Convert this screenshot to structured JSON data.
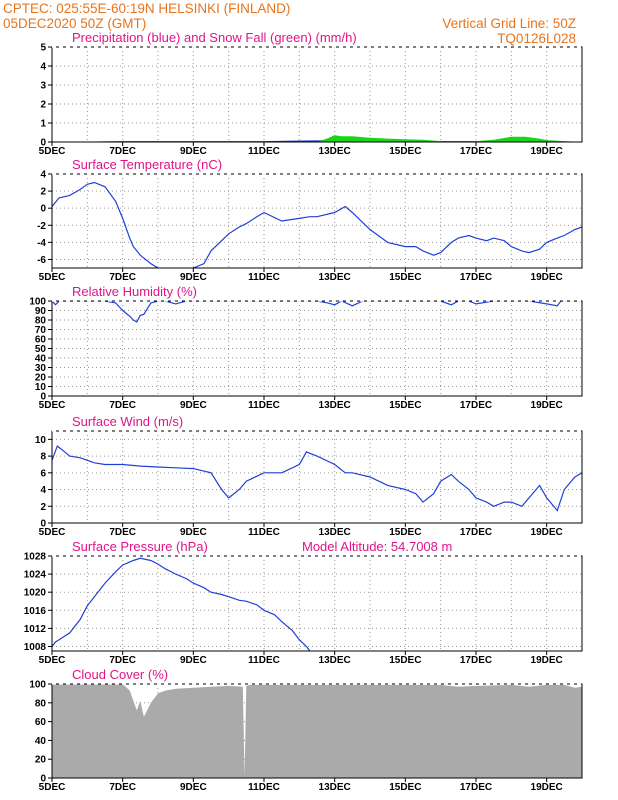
{
  "header": {
    "line1": "CPTEC:   025:55E-60:19N   HELSINKI (FINLAND)",
    "line2": "05DEC2020 50Z (GMT)",
    "right1": "Vertical Grid Line: 50Z",
    "right2": "TQ0126L028"
  },
  "colors": {
    "header": "#e8741c",
    "title": "#e0148a",
    "line": "#2040d8",
    "snow": "#19d619",
    "cloud": "#aaaaaa"
  },
  "x_ticks": [
    "5DEC",
    "7DEC",
    "9DEC",
    "11DEC",
    "13DEC",
    "15DEC",
    "17DEC",
    "19DEC"
  ],
  "chart_data": [
    {
      "type": "area",
      "title": "Precipitation (blue) and Snow Fall (green) (mm/h)",
      "xlim": [
        0,
        15
      ],
      "ylim": [
        0,
        5
      ],
      "y_ticks": [
        0,
        1,
        2,
        3,
        4,
        5
      ],
      "series": [
        {
          "name": "Precipitation",
          "x": [
            0,
            2,
            3,
            6,
            7,
            8,
            9,
            10,
            13,
            15
          ],
          "y": [
            0,
            0.05,
            0.05,
            0.05,
            0.08,
            0.1,
            0.08,
            0.05,
            0.05,
            0
          ]
        },
        {
          "name": "Snow Fall",
          "x": [
            0,
            7.5,
            7.8,
            8.0,
            8.2,
            8.5,
            9.0,
            9.5,
            10.0,
            10.5,
            11.0,
            11.3,
            11.6,
            12.0,
            12.5,
            13.0,
            13.4,
            13.8,
            14.0,
            14.5,
            15.0
          ],
          "y": [
            0,
            0,
            0.2,
            0.35,
            0.3,
            0.3,
            0.22,
            0.18,
            0.15,
            0.12,
            0.05,
            0,
            0,
            0.05,
            0.12,
            0.28,
            0.28,
            0.18,
            0.1,
            0.05,
            0
          ]
        }
      ]
    },
    {
      "type": "line",
      "title": "Surface Temperature (nC)",
      "xlim": [
        0,
        15
      ],
      "ylim": [
        -7,
        4
      ],
      "y_ticks": [
        -6,
        -4,
        -2,
        0,
        2,
        4
      ],
      "series": [
        {
          "name": "Surface Temperature",
          "x": [
            0,
            0.2,
            0.5,
            0.8,
            1.0,
            1.2,
            1.5,
            1.8,
            2.0,
            2.2,
            2.3,
            2.5,
            2.8,
            3.0,
            3.2,
            3.5,
            4.0,
            4.3,
            4.5,
            5.0,
            5.3,
            5.5,
            5.8,
            6.0,
            6.5,
            7.0,
            7.3,
            7.5,
            8.0,
            8.3,
            8.5,
            9.0,
            9.5,
            10.0,
            10.3,
            10.5,
            10.8,
            11.0,
            11.3,
            11.5,
            11.8,
            12.0,
            12.3,
            12.5,
            12.8,
            13.0,
            13.3,
            13.5,
            13.8,
            14.0,
            14.3,
            14.5,
            14.8,
            15.0
          ],
          "y": [
            0.2,
            1.2,
            1.5,
            2.2,
            2.8,
            3.0,
            2.5,
            0.8,
            -1.2,
            -3.5,
            -4.5,
            -5.5,
            -6.5,
            -7.0,
            -7.2,
            -7.5,
            -7.0,
            -6.5,
            -5.0,
            -3.0,
            -2.2,
            -1.8,
            -1.0,
            -0.5,
            -1.5,
            -1.2,
            -1.0,
            -1.0,
            -0.5,
            0.2,
            -0.5,
            -2.5,
            -4.0,
            -4.5,
            -4.5,
            -5.0,
            -5.5,
            -5.2,
            -4.0,
            -3.5,
            -3.2,
            -3.5,
            -3.8,
            -3.5,
            -3.8,
            -4.5,
            -5.0,
            -5.2,
            -4.8,
            -4.0,
            -3.5,
            -3.2,
            -2.5,
            -2.2
          ]
        }
      ]
    },
    {
      "type": "line",
      "title": "Relative Humidity (%)",
      "xlim": [
        0,
        15
      ],
      "ylim": [
        0,
        100
      ],
      "y_ticks": [
        0,
        10,
        20,
        30,
        40,
        50,
        60,
        70,
        80,
        90,
        100
      ],
      "series": [
        {
          "name": "Relative Humidity",
          "x": [
            0,
            0.1,
            0.2,
            0.5,
            1.0,
            1.5,
            1.8,
            2.0,
            2.2,
            2.3,
            2.4,
            2.5,
            2.6,
            2.7,
            2.8,
            3.0,
            3.2,
            3.5,
            3.8,
            4.0,
            5.0,
            7.5,
            7.8,
            8.0,
            8.2,
            8.5,
            8.8,
            9.0,
            9.5,
            11.0,
            11.3,
            11.5,
            11.8,
            12.0,
            12.5,
            13.0,
            13.5,
            14.0,
            14.3,
            14.4,
            14.5,
            15.0
          ],
          "y": [
            100,
            96,
            100,
            100,
            100,
            100,
            98,
            90,
            84,
            80,
            78,
            85,
            86,
            92,
            98,
            100,
            100,
            97,
            100,
            100,
            100,
            100,
            98,
            96,
            100,
            95,
            100,
            100,
            100,
            100,
            96,
            100,
            100,
            97,
            100,
            100,
            100,
            97,
            95,
            100,
            100,
            100
          ]
        }
      ]
    },
    {
      "type": "line",
      "title": "Surface Wind (m/s)",
      "xlim": [
        0,
        15
      ],
      "ylim": [
        0,
        11
      ],
      "y_ticks": [
        0,
        2,
        4,
        6,
        8,
        10
      ],
      "series": [
        {
          "name": "Surface Wind",
          "x": [
            0,
            0.15,
            0.3,
            0.5,
            0.8,
            1.0,
            1.2,
            1.5,
            2.0,
            2.5,
            3.0,
            3.5,
            4.0,
            4.5,
            4.8,
            5.0,
            5.3,
            5.5,
            6.0,
            6.5,
            7.0,
            7.2,
            7.5,
            8.0,
            8.3,
            8.5,
            9.0,
            9.5,
            10.0,
            10.3,
            10.5,
            10.8,
            11.0,
            11.3,
            11.5,
            11.8,
            12.0,
            12.3,
            12.5,
            12.8,
            13.0,
            13.3,
            13.5,
            13.8,
            14.0,
            14.3,
            14.5,
            14.8,
            15.0
          ],
          "y": [
            7.5,
            9.2,
            8.7,
            8.0,
            7.8,
            7.5,
            7.2,
            7.0,
            7.0,
            6.8,
            6.7,
            6.6,
            6.5,
            6.0,
            4.0,
            3.0,
            4.0,
            5.0,
            6.0,
            6.0,
            7.0,
            8.5,
            8.0,
            7.0,
            6.0,
            6.0,
            5.5,
            4.5,
            4.0,
            3.5,
            2.5,
            3.5,
            5.0,
            5.8,
            5.0,
            4.0,
            3.0,
            2.5,
            2.0,
            2.5,
            2.5,
            2.0,
            3.0,
            4.5,
            3.0,
            1.5,
            4.0,
            5.5,
            6.0
          ]
        }
      ]
    },
    {
      "type": "line",
      "title": "Surface Pressure (hPa)",
      "annotation": "Model Altitude: 54.7008 m",
      "xlim": [
        0,
        15
      ],
      "ylim": [
        1007,
        1028
      ],
      "y_ticks": [
        1008,
        1012,
        1016,
        1020,
        1024,
        1028
      ],
      "series": [
        {
          "name": "Surface Pressure",
          "x": [
            0,
            0.1,
            0.2,
            0.5,
            0.8,
            1.0,
            1.3,
            1.5,
            1.8,
            2.0,
            2.3,
            2.5,
            2.8,
            3.0,
            3.2,
            3.5,
            3.8,
            4.0,
            4.3,
            4.5,
            4.8,
            5.0,
            5.3,
            5.5,
            5.8,
            6.0,
            6.3,
            6.5,
            6.8,
            7.0,
            7.2,
            7.3
          ],
          "y": [
            1008,
            1009,
            1009.5,
            1011,
            1014,
            1017,
            1020,
            1022,
            1024.5,
            1026,
            1027,
            1027.5,
            1027,
            1026.2,
            1025.2,
            1024,
            1023,
            1022,
            1021,
            1020,
            1019.5,
            1019,
            1018.2,
            1018,
            1017.2,
            1016,
            1015,
            1013.5,
            1011.5,
            1009.5,
            1008,
            1007
          ]
        }
      ]
    },
    {
      "type": "area",
      "title": "Cloud Cover (%)",
      "xlim": [
        0,
        15
      ],
      "ylim": [
        0,
        100
      ],
      "y_ticks": [
        0,
        20,
        40,
        60,
        80,
        100
      ],
      "series": [
        {
          "name": "Cloud Cover",
          "x": [
            0,
            2.0,
            2.2,
            2.4,
            2.5,
            2.6,
            2.8,
            3.0,
            3.2,
            3.5,
            4.0,
            4.5,
            5.0,
            5.4,
            5.45,
            5.5,
            5.6,
            6.0,
            11.0,
            11.5,
            12.0,
            13.0,
            13.5,
            14.0,
            14.5,
            14.8,
            15.0
          ],
          "y": [
            100,
            100,
            93,
            72,
            82,
            65,
            80,
            90,
            93,
            95,
            96,
            97,
            98,
            97,
            2,
            98,
            99,
            99,
            99,
            97,
            98,
            99,
            97,
            99,
            99,
            96,
            97
          ]
        }
      ]
    }
  ]
}
